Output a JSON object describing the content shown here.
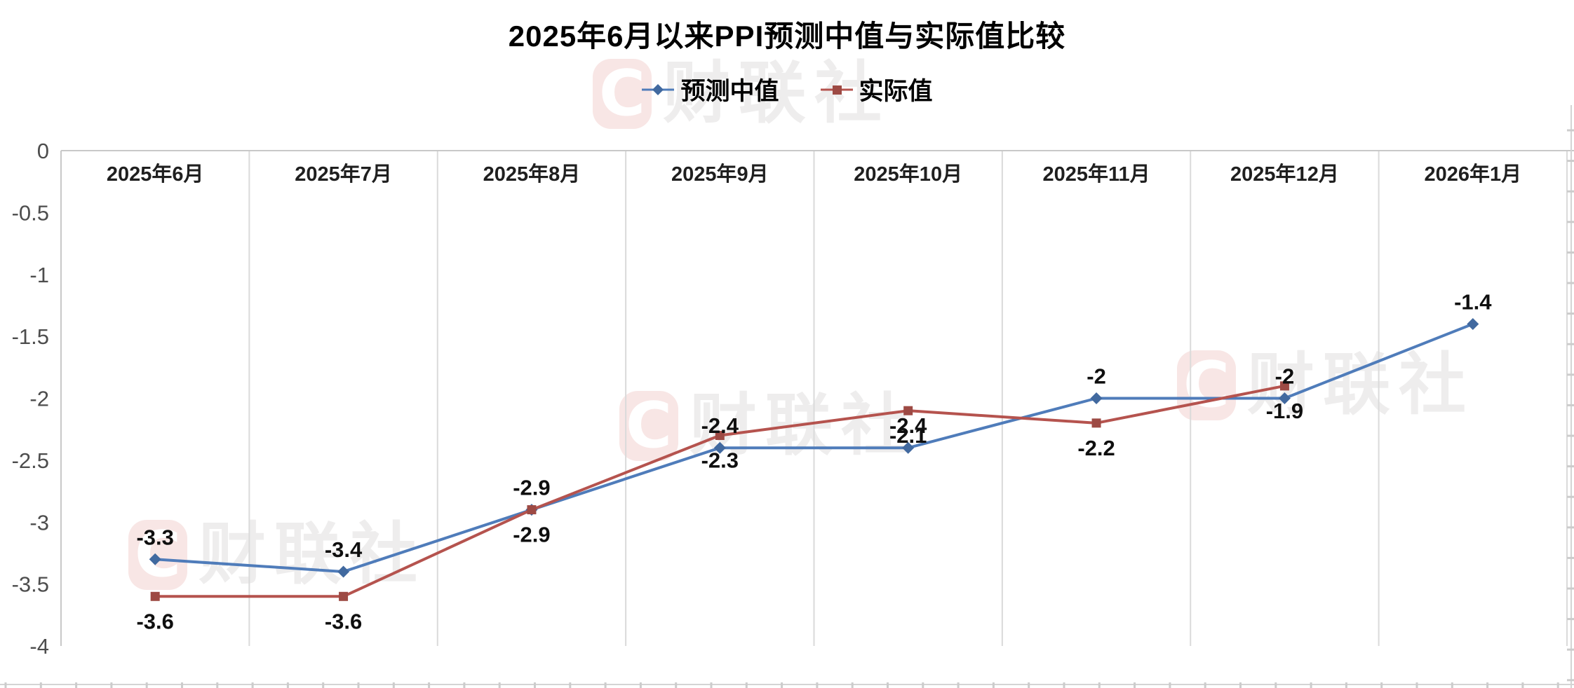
{
  "title": "2025年6月以来PPI预测中值与实际值比较",
  "watermark": {
    "logo_letter": "C",
    "text": "财联社"
  },
  "chart_data": {
    "type": "line",
    "title": "2025年6月以来PPI预测中值与实际值比较",
    "categories": [
      "2025年6月",
      "2025年7月",
      "2025年8月",
      "2025年9月",
      "2025年10月",
      "2025年11月",
      "2025年12月",
      "2026年1月"
    ],
    "series": [
      {
        "name": "预测中值",
        "color": "#4f7cba",
        "marker_color": "#41699f",
        "marker": "diamond",
        "label_position": "above",
        "values": [
          -3.3,
          -3.4,
          -2.9,
          -2.4,
          -2.4,
          -2,
          -2,
          -1.4
        ],
        "labels": [
          "-3.3",
          "-3.4",
          "-2.9",
          "-2.4",
          "-2.4",
          "-2",
          "-2",
          "-1.4"
        ]
      },
      {
        "name": "实际值",
        "color": "#b5534e",
        "marker_color": "#9d4a44",
        "marker": "square",
        "label_position": "below",
        "values": [
          -3.6,
          -3.6,
          -2.9,
          -2.3,
          -2.1,
          -2.2,
          -1.9,
          null
        ],
        "labels": [
          "-3.6",
          "-3.6",
          "-2.9",
          "-2.3",
          "-2.1",
          "-2.2",
          "-1.9",
          null
        ]
      }
    ],
    "xlabel": "",
    "ylabel": "",
    "ylim": [
      -4,
      0
    ],
    "yticks": [
      0,
      -0.5,
      -1,
      -1.5,
      -2,
      -2.5,
      -3,
      -3.5,
      -4
    ],
    "ytick_labels": [
      "0",
      "-0.5",
      "-1",
      "-1.5",
      "-2",
      "-2.5",
      "-3",
      "-3.5",
      "-4"
    ],
    "grid": "vertical-only",
    "legend_position": "top-center",
    "grid_color": "#dadada",
    "axis_color": "#c8c8c8",
    "data_label_color": "#0f0f0f"
  }
}
